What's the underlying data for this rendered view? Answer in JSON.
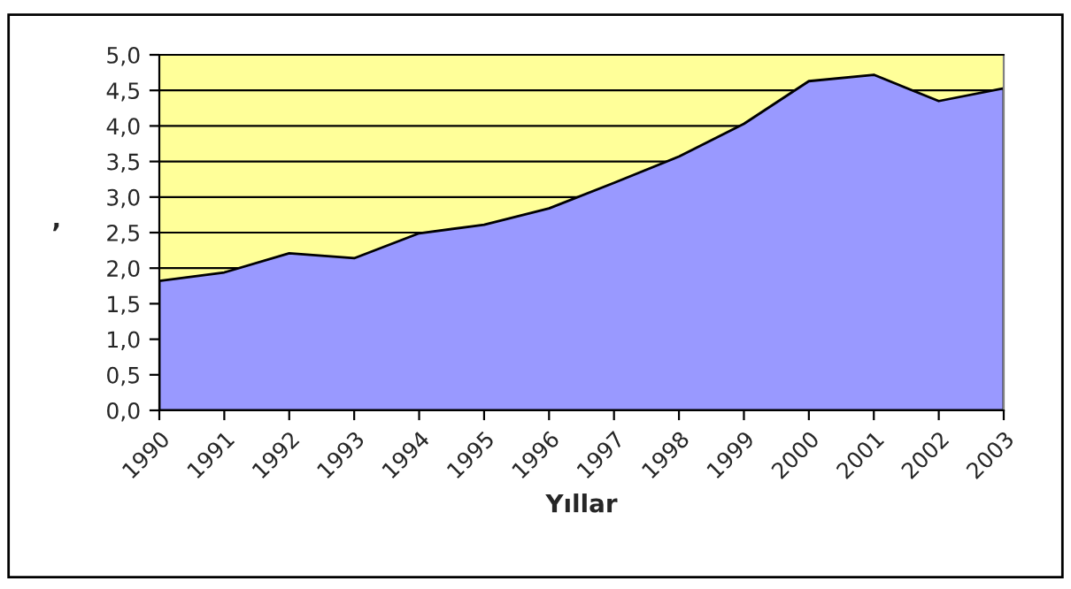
{
  "chart_data": {
    "type": "area",
    "xlabel": "Yıllar",
    "ylabel": ",",
    "categories": [
      "1990",
      "1991",
      "1992",
      "1993",
      "1994",
      "1995",
      "1996",
      "1997",
      "1998",
      "1999",
      "2000",
      "2001",
      "2002",
      "2003"
    ],
    "series": [
      {
        "color": "#9999ff",
        "values": [
          1.82,
          1.94,
          2.21,
          2.14,
          2.49,
          2.61,
          2.84,
          3.2,
          3.57,
          4.03,
          4.63,
          4.72,
          4.35,
          4.53
        ]
      }
    ],
    "ylim": [
      0,
      5
    ],
    "yticks": [
      {
        "value": 0,
        "label": "0,0"
      },
      {
        "value": 0.5,
        "label": "0,5"
      },
      {
        "value": 1,
        "label": "1,0"
      },
      {
        "value": 1.5,
        "label": "1,5"
      },
      {
        "value": 2,
        "label": "2,0"
      },
      {
        "value": 2.5,
        "label": "2,5"
      },
      {
        "value": 3,
        "label": "3,0"
      },
      {
        "value": 3.5,
        "label": "3,5"
      },
      {
        "value": 4,
        "label": "4,0"
      },
      {
        "value": 4.5,
        "label": "4,5"
      },
      {
        "value": 5,
        "label": "5,0"
      }
    ],
    "bands": [
      {
        "axis": "y",
        "from": 0,
        "to": 5,
        "color": "#ffff99"
      }
    ],
    "grid": "y",
    "legend": false
  }
}
